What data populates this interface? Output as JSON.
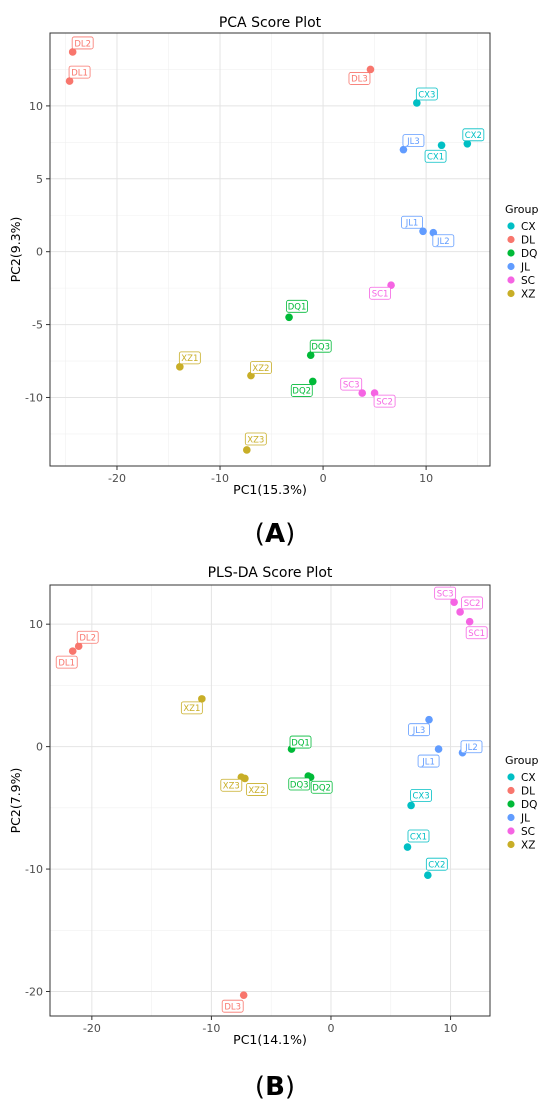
{
  "chart_data": [
    {
      "type": "scatter",
      "panel_label": "A",
      "title": "PCA Score Plot",
      "xlabel": "PC1(15.3%)",
      "ylabel": "PC2(9.3%)",
      "xlim": [
        -26.5,
        16.2
      ],
      "ylim": [
        -14.7,
        15.0
      ],
      "xticks": [
        -20,
        -10,
        0,
        10
      ],
      "yticks": [
        -10,
        -5,
        0,
        5,
        10
      ],
      "grid": true,
      "legend": {
        "title": "Group",
        "position": "right"
      },
      "groups": [
        {
          "name": "CX",
          "color": "#00BFC4",
          "points": [
            {
              "label": "CX1",
              "x": 11.5,
              "y": 7.3
            },
            {
              "label": "CX2",
              "x": 14.0,
              "y": 7.4
            },
            {
              "label": "CX3",
              "x": 9.1,
              "y": 10.2
            }
          ]
        },
        {
          "name": "DL",
          "color": "#F8766D",
          "points": [
            {
              "label": "DL1",
              "x": -24.6,
              "y": 11.7
            },
            {
              "label": "DL2",
              "x": -24.3,
              "y": 13.7
            },
            {
              "label": "DL3",
              "x": 4.6,
              "y": 12.5
            }
          ]
        },
        {
          "name": "DQ",
          "color": "#00BA38",
          "points": [
            {
              "label": "DQ1",
              "x": -3.3,
              "y": -4.5
            },
            {
              "label": "DQ2",
              "x": -1.0,
              "y": -8.9
            },
            {
              "label": "DQ3",
              "x": -1.2,
              "y": -7.1
            }
          ]
        },
        {
          "name": "JL",
          "color": "#619CFF",
          "points": [
            {
              "label": "JL1",
              "x": 9.7,
              "y": 1.4
            },
            {
              "label": "JL2",
              "x": 10.7,
              "y": 1.3
            },
            {
              "label": "JL3",
              "x": 7.8,
              "y": 7.0
            }
          ]
        },
        {
          "name": "SC",
          "color": "#F564E3",
          "points": [
            {
              "label": "SC1",
              "x": 6.6,
              "y": -2.3
            },
            {
              "label": "SC2",
              "x": 5.0,
              "y": -9.7
            },
            {
              "label": "SC3",
              "x": 3.8,
              "y": -9.7
            }
          ]
        },
        {
          "name": "XZ",
          "color": "#C8AE27",
          "points": [
            {
              "label": "XZ1",
              "x": -13.9,
              "y": -7.9
            },
            {
              "label": "XZ2",
              "x": -7.0,
              "y": -8.5
            },
            {
              "label": "XZ3",
              "x": -7.4,
              "y": -13.6
            }
          ]
        }
      ]
    },
    {
      "type": "scatter",
      "panel_label": "B",
      "title": "PLS-DA Score Plot",
      "xlabel": "PC1(14.1%)",
      "ylabel": "PC2(7.9%)",
      "xlim": [
        -23.5,
        13.3
      ],
      "ylim": [
        -22.0,
        13.2
      ],
      "xticks": [
        -20,
        -10,
        0,
        10
      ],
      "yticks": [
        -20,
        -10,
        0,
        10
      ],
      "grid": true,
      "legend": {
        "title": "Group",
        "position": "right"
      },
      "groups": [
        {
          "name": "CX",
          "color": "#00BFC4",
          "points": [
            {
              "label": "CX1",
              "x": 6.4,
              "y": -8.2
            },
            {
              "label": "CX2",
              "x": 8.1,
              "y": -10.5
            },
            {
              "label": "CX3",
              "x": 6.7,
              "y": -4.8
            }
          ]
        },
        {
          "name": "DL",
          "color": "#F8766D",
          "points": [
            {
              "label": "DL1",
              "x": -21.6,
              "y": 7.8
            },
            {
              "label": "DL2",
              "x": -21.1,
              "y": 8.2
            },
            {
              "label": "DL3",
              "x": -7.3,
              "y": -20.3
            }
          ]
        },
        {
          "name": "DQ",
          "color": "#00BA38",
          "points": [
            {
              "label": "DQ1",
              "x": -3.3,
              "y": -0.2
            },
            {
              "label": "DQ2",
              "x": -1.7,
              "y": -2.5
            },
            {
              "label": "DQ3",
              "x": -1.9,
              "y": -2.4
            }
          ]
        },
        {
          "name": "JL",
          "color": "#619CFF",
          "points": [
            {
              "label": "JL1",
              "x": 9.0,
              "y": -0.2
            },
            {
              "label": "JL2",
              "x": 11.0,
              "y": -0.5
            },
            {
              "label": "JL3",
              "x": 8.2,
              "y": 2.2
            }
          ]
        },
        {
          "name": "SC",
          "color": "#F564E3",
          "points": [
            {
              "label": "SC1",
              "x": 11.6,
              "y": 10.2
            },
            {
              "label": "SC2",
              "x": 10.8,
              "y": 11.0
            },
            {
              "label": "SC3",
              "x": 10.3,
              "y": 11.8
            }
          ]
        },
        {
          "name": "XZ",
          "color": "#C8AE27",
          "points": [
            {
              "label": "XZ1",
              "x": -10.8,
              "y": 3.9
            },
            {
              "label": "XZ2",
              "x": -7.2,
              "y": -2.6
            },
            {
              "label": "XZ3",
              "x": -7.5,
              "y": -2.5
            }
          ]
        }
      ]
    }
  ]
}
